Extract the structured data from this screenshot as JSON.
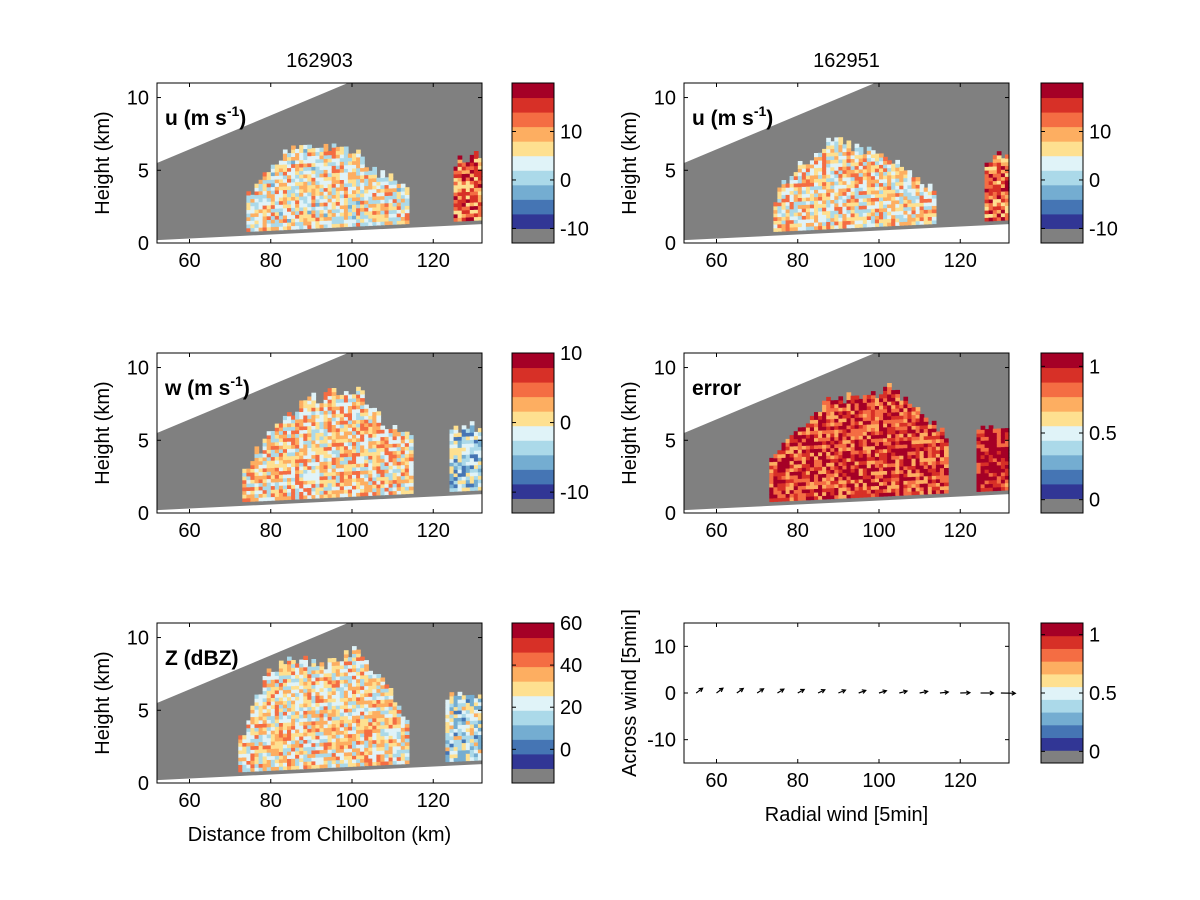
{
  "chart_data": [
    {
      "type": "heatmap",
      "column_title": "162903",
      "panel_label": "u (m s",
      "panel_label_sup": "-1",
      "panel_label_end": ")",
      "ylabel": "Height (km)",
      "xlabel": "",
      "xlim": [
        52,
        132
      ],
      "ylim": [
        0,
        11
      ],
      "xticks": [
        60,
        80,
        100,
        120
      ],
      "yticks": [
        0,
        5,
        10
      ],
      "colorbar": {
        "range": [
          -13,
          20
        ],
        "ticks": [
          10,
          0,
          -10
        ]
      },
      "echo_regions": [
        {
          "x": [
            74,
            114
          ],
          "top_km": [
            3.0,
            5.5,
            7.0,
            6.5,
            6.0,
            4.5,
            3.5
          ],
          "mean": 4
        },
        {
          "x": [
            125,
            132
          ],
          "top_km": [
            5.5,
            6.0
          ],
          "mean": 11
        }
      ]
    },
    {
      "type": "heatmap",
      "column_title": "162951",
      "panel_label": "u (m s",
      "panel_label_sup": "-1",
      "panel_label_end": ")",
      "ylabel": "Height (km)",
      "xlabel": "",
      "xlim": [
        52,
        132
      ],
      "ylim": [
        0,
        11
      ],
      "xticks": [
        60,
        80,
        100,
        120
      ],
      "yticks": [
        0,
        5,
        10
      ],
      "colorbar": {
        "range": [
          -13,
          20
        ],
        "ticks": [
          10,
          0,
          -10
        ]
      },
      "echo_regions": [
        {
          "x": [
            74,
            114
          ],
          "top_km": [
            3.0,
            5.5,
            7.0,
            6.5,
            6.0,
            4.5,
            3.5
          ],
          "mean": 5
        },
        {
          "x": [
            126,
            132
          ],
          "top_km": [
            5.5,
            6.0
          ],
          "mean": 11
        }
      ]
    },
    {
      "type": "heatmap",
      "panel_label": "w (m s",
      "panel_label_sup": "-1",
      "panel_label_end": ")",
      "ylabel": "Height (km)",
      "xlabel": "",
      "xlim": [
        52,
        132
      ],
      "ylim": [
        0,
        11
      ],
      "xticks": [
        60,
        80,
        100,
        120
      ],
      "yticks": [
        0,
        5,
        10
      ],
      "colorbar": {
        "range": [
          -13,
          10
        ],
        "ticks": [
          10,
          0,
          -10
        ]
      },
      "echo_regions": [
        {
          "x": [
            73,
            115
          ],
          "top_km": [
            3.0,
            5.5,
            7.5,
            8.0,
            8.3,
            6.0,
            5.0
          ],
          "mean": 0
        },
        {
          "x": [
            124,
            132
          ],
          "top_km": [
            5.5,
            6.0
          ],
          "mean": -5
        }
      ]
    },
    {
      "type": "heatmap",
      "panel_label": "error",
      "ylabel": "Height (km)",
      "xlabel": "",
      "xlim": [
        52,
        132
      ],
      "ylim": [
        0,
        11
      ],
      "xticks": [
        60,
        80,
        100,
        120
      ],
      "yticks": [
        0,
        5,
        10
      ],
      "colorbar": {
        "range": [
          -0.1,
          1.1
        ],
        "ticks": [
          1,
          0.5,
          0
        ]
      },
      "echo_regions": [
        {
          "x": [
            73,
            117
          ],
          "top_km": [
            3.5,
            6.0,
            7.5,
            8.0,
            8.5,
            7.0,
            5.0
          ],
          "mean": 0.9
        },
        {
          "x": [
            124,
            132
          ],
          "top_km": [
            5.5,
            6.0
          ],
          "mean": 1.0
        }
      ]
    },
    {
      "type": "heatmap",
      "panel_label": "Z (dBZ)",
      "ylabel": "Height (km)",
      "xlabel": "Distance from Chilbolton (km)",
      "xlim": [
        52,
        132
      ],
      "ylim": [
        0,
        11
      ],
      "xticks": [
        60,
        80,
        100,
        120
      ],
      "yticks": [
        0,
        5,
        10
      ],
      "colorbar": {
        "range": [
          -16,
          60
        ],
        "ticks": [
          60,
          40,
          20,
          0
        ]
      },
      "echo_regions": [
        {
          "x": [
            72,
            114
          ],
          "top_km": [
            3.0,
            7.5,
            8.5,
            8.0,
            9.0,
            7.0,
            3.5
          ],
          "mean": 25
        },
        {
          "x": [
            123,
            132
          ],
          "top_km": [
            6.0,
            6.0
          ],
          "mean": 15
        }
      ]
    },
    {
      "type": "quiver",
      "ylabel": "Across wind [5min]",
      "xlabel": "Radial wind [5min]",
      "xlim": [
        52,
        132
      ],
      "ylim": [
        -15,
        15
      ],
      "xticks": [
        60,
        80,
        100,
        120
      ],
      "yticks": [
        -10,
        0,
        10
      ],
      "colorbar": {
        "range": [
          -0.1,
          1.1
        ],
        "ticks": [
          1,
          0.5,
          0
        ]
      },
      "vectors": [
        {
          "x": 55,
          "u": 2.0,
          "v": 1.5
        },
        {
          "x": 60,
          "u": 2.0,
          "v": 1.5
        },
        {
          "x": 65,
          "u": 2.0,
          "v": 1.4
        },
        {
          "x": 70,
          "u": 2.0,
          "v": 1.3
        },
        {
          "x": 75,
          "u": 2.0,
          "v": 1.2
        },
        {
          "x": 80,
          "u": 2.0,
          "v": 1.1
        },
        {
          "x": 85,
          "u": 2.1,
          "v": 1.0
        },
        {
          "x": 90,
          "u": 2.2,
          "v": 0.9
        },
        {
          "x": 95,
          "u": 2.2,
          "v": 0.8
        },
        {
          "x": 100,
          "u": 2.3,
          "v": 0.7
        },
        {
          "x": 105,
          "u": 2.4,
          "v": 0.6
        },
        {
          "x": 110,
          "u": 2.5,
          "v": 0.5
        },
        {
          "x": 115,
          "u": 2.6,
          "v": 0.3
        },
        {
          "x": 120,
          "u": 3.0,
          "v": 0.1
        },
        {
          "x": 125,
          "u": 4.0,
          "v": 0.0
        },
        {
          "x": 130,
          "u": 4.5,
          "v": -0.1
        }
      ]
    }
  ],
  "colors": {
    "masked_gray": "#808080",
    "colormap": [
      "#313695",
      "#4575b4",
      "#74add1",
      "#abd9e9",
      "#e0f3f8",
      "#fee090",
      "#fdae61",
      "#f46d43",
      "#d73027",
      "#a50026"
    ]
  }
}
